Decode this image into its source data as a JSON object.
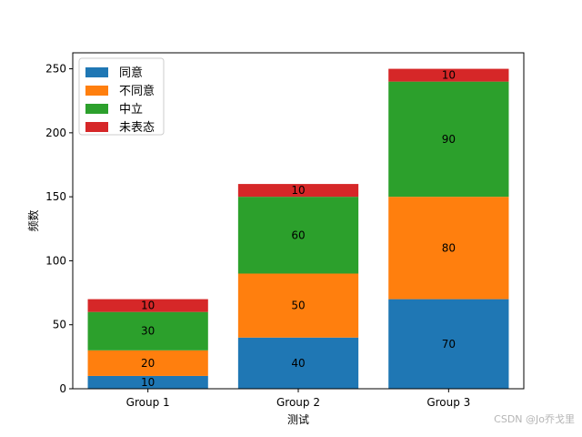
{
  "chart_data": {
    "type": "bar",
    "stacked": true,
    "categories": [
      "Group 1",
      "Group 2",
      "Group 3"
    ],
    "series": [
      {
        "name": "同意",
        "values": [
          10,
          40,
          70
        ],
        "color": "#1f77b4"
      },
      {
        "name": "不同意",
        "values": [
          20,
          50,
          80
        ],
        "color": "#ff7f0e"
      },
      {
        "name": "中立",
        "values": [
          30,
          60,
          90
        ],
        "color": "#2ca02c"
      },
      {
        "name": "未表态",
        "values": [
          10,
          10,
          10
        ],
        "color": "#d62728"
      }
    ],
    "xlabel": "测试",
    "ylabel": "频数",
    "ylim": [
      0,
      262.5
    ],
    "yticks": [
      "0",
      "50",
      "100",
      "150",
      "200",
      "250"
    ],
    "grid": false,
    "legend_position": "top-left"
  },
  "watermark": "CSDN @Jo乔戈里"
}
